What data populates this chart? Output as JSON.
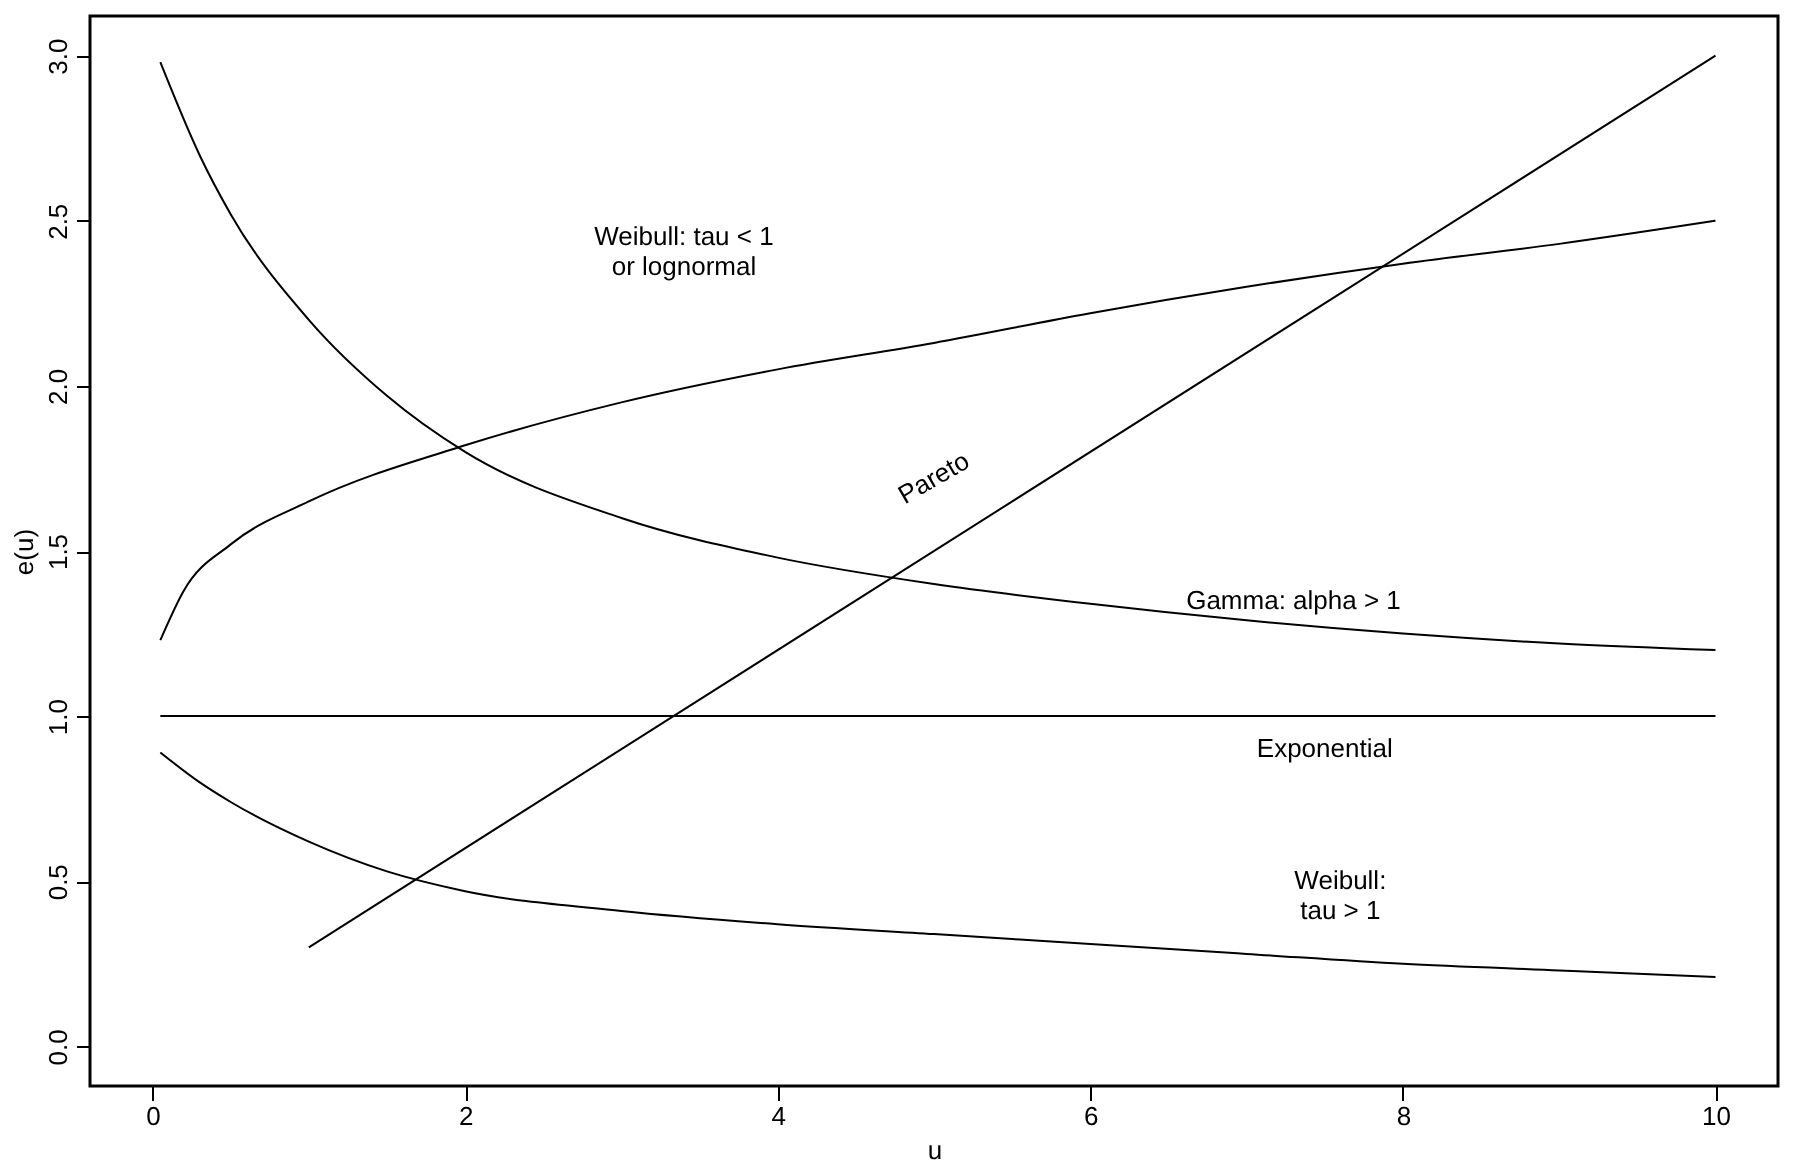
{
  "chart_data": {
    "type": "line",
    "xlabel": "u",
    "ylabel": "e(u)",
    "xlim": [
      -0.4,
      10.4
    ],
    "ylim": [
      -0.12,
      3.12
    ],
    "xticks": [
      0,
      2,
      4,
      6,
      8,
      10
    ],
    "yticks": [
      {
        "value": 0,
        "label": "0.0"
      },
      {
        "value": 0.5,
        "label": "0.5"
      },
      {
        "value": 1,
        "label": "1.0"
      },
      {
        "value": 1.5,
        "label": "1.5"
      },
      {
        "value": 2,
        "label": "2.0"
      },
      {
        "value": 2.5,
        "label": "2.5"
      },
      {
        "value": 3,
        "label": "3.0"
      }
    ],
    "grid": false,
    "legend": false,
    "marker": "none",
    "line_style": "solid",
    "series": [
      {
        "color": "#000000",
        "x": [
          0.05,
          0.3,
          0.5,
          1,
          1.5,
          2,
          3,
          4,
          5,
          6,
          7,
          8,
          9,
          10
        ],
        "values": [
          2.98,
          2.7,
          2.52,
          2.2,
          1.97,
          1.8,
          1.6,
          1.48,
          1.4,
          1.34,
          1.29,
          1.25,
          1.22,
          1.2
        ]
      },
      {
        "color": "#000000",
        "x": [
          0.05,
          0.2,
          0.5,
          1,
          2,
          3,
          4,
          5,
          6,
          7,
          8,
          9,
          10
        ],
        "values": [
          1.23,
          1.38,
          1.52,
          1.65,
          1.82,
          1.95,
          2.05,
          2.13,
          2.22,
          2.3,
          2.37,
          2.43,
          2.5
        ]
      },
      {
        "color": "#000000",
        "x": [
          0.05,
          10
        ],
        "values": [
          1,
          1
        ]
      },
      {
        "color": "#000000",
        "x": [
          1,
          10
        ],
        "values": [
          0.3,
          3
        ]
      },
      {
        "color": "#000000",
        "x": [
          0.05,
          0.3,
          0.5,
          1,
          1.5,
          2,
          3,
          4,
          5,
          6,
          7,
          8,
          9,
          10
        ],
        "values": [
          0.89,
          0.8,
          0.74,
          0.62,
          0.53,
          0.47,
          0.41,
          0.37,
          0.34,
          0.31,
          0.28,
          0.25,
          0.23,
          0.21
        ]
      }
    ],
    "annotations": [
      "Weibull: tau < 1\nor lognormal",
      "Pareto",
      "Gamma: alpha > 1",
      "Exponential",
      "Weibull:\ntau > 1"
    ]
  }
}
